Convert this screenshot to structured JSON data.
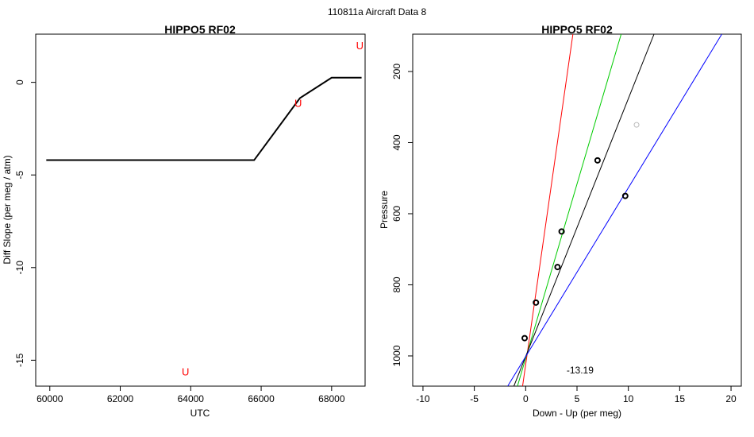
{
  "page": {
    "supertitle": "110811a   Aircraft Data 8"
  },
  "chart_data": [
    {
      "type": "line",
      "title": "HIPPO5 RF02",
      "xlabel": "UTC",
      "ylabel": "Diff Slope (per meg / atm)",
      "xlim": [
        59600,
        68950
      ],
      "ylim": [
        -16.4,
        2.6
      ],
      "xticks": [
        60000,
        62000,
        64000,
        66000,
        68000
      ],
      "yticks": [
        -15,
        -10,
        -5,
        0
      ],
      "series": [
        {
          "color": "#000000",
          "x": [
            59900,
            65800,
            67100,
            68000,
            68850
          ],
          "y": [
            -4.2,
            -4.2,
            -0.85,
            0.25,
            0.25
          ]
        }
      ],
      "markers": [
        {
          "label": "U",
          "color": "#ff0000",
          "x": 68800,
          "y": 2.0
        },
        {
          "label": "U",
          "color": "#ff0000",
          "x": 67050,
          "y": -1.1
        },
        {
          "label": "U",
          "color": "#ff0000",
          "x": 63850,
          "y": -15.6
        }
      ]
    },
    {
      "type": "scatter",
      "title": "HIPPO5 RF02",
      "xlabel": "Down - Up (per meg)",
      "ylabel": "Pressure",
      "xlim": [
        -11,
        21
      ],
      "ylim": [
        1085,
        95
      ],
      "xticks": [
        -10,
        -5,
        0,
        5,
        10,
        15,
        20
      ],
      "yticks": [
        200,
        400,
        600,
        800,
        1000
      ],
      "annotation": {
        "text": "-13.19",
        "x": 5.3,
        "y": 1040
      },
      "points": [
        {
          "x": -0.1,
          "y": 950,
          "color": "#000000"
        },
        {
          "x": 1.0,
          "y": 850,
          "color": "#000000"
        },
        {
          "x": 3.1,
          "y": 750,
          "color": "#000000"
        },
        {
          "x": 3.5,
          "y": 650,
          "color": "#000000"
        },
        {
          "x": 7.0,
          "y": 450,
          "color": "#000000"
        },
        {
          "x": 9.7,
          "y": 550,
          "color": "#000000"
        },
        {
          "x": 10.8,
          "y": 350,
          "color": "#bbbbbb"
        }
      ],
      "lines": [
        {
          "color": "#ff0000",
          "x0": -0.3,
          "y0": 1085,
          "x1": 4.6,
          "y1": 95
        },
        {
          "color": "#00cc00",
          "x0": -0.8,
          "y0": 1085,
          "x1": 9.3,
          "y1": 95
        },
        {
          "color": "#000000",
          "x0": -1.15,
          "y0": 1085,
          "x1": 12.5,
          "y1": 95
        },
        {
          "color": "#0000ff",
          "x0": -1.75,
          "y0": 1085,
          "x1": 19.1,
          "y1": 95
        }
      ]
    }
  ]
}
